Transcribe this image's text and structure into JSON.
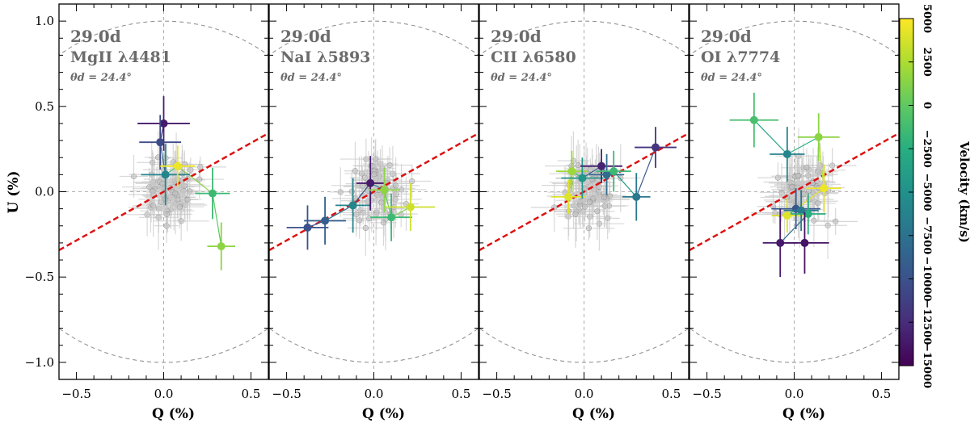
{
  "chart_data": {
    "type": "scatter",
    "figure_title": "",
    "x_range": [
      -0.6,
      0.6
    ],
    "y_range": [
      -1.1,
      1.1
    ],
    "xlabel": "Q (%)",
    "ylabel": "U (%)",
    "x_ticks": [
      -0.5,
      0.0,
      0.5
    ],
    "x_tick_labels": [
      "−0.5",
      "0.0",
      "0.5"
    ],
    "y_ticks": [
      -1.0,
      -0.5,
      0.0,
      0.5,
      1.0
    ],
    "y_tick_labels": [
      "−1.0",
      "−0.5",
      "0.0",
      "0.5",
      "1.0"
    ],
    "dominant_angle_deg": 24.4,
    "colorbar": {
      "label": "Velocity (km/s)",
      "range": [
        -15000,
        5000
      ],
      "ticks": [
        5000,
        2500,
        0,
        -2500,
        -5000,
        -7500,
        -10000,
        -12500,
        -15000
      ],
      "tick_labels": [
        "5000",
        "2500",
        "0",
        "−2500",
        "−5000",
        "−7500",
        "−10000",
        "−12500",
        "−15000"
      ],
      "colormap": "viridis"
    },
    "panels": [
      {
        "epoch": "29.0d",
        "line": "MgII λ4481",
        "angle_text": "θd = 24.4°",
        "points": [
          {
            "q": 0.0,
            "u": 0.4,
            "v": -13500,
            "eq": 0.15,
            "eu": 0.16
          },
          {
            "q": -0.02,
            "u": 0.29,
            "v": -10500,
            "eq": 0.12,
            "eu": 0.16
          },
          {
            "q": 0.01,
            "u": 0.1,
            "v": -6000,
            "eq": 0.14,
            "eu": 0.18
          },
          {
            "q": 0.08,
            "u": 0.15,
            "v": 4500,
            "eq": 0.1,
            "eu": 0.12
          },
          {
            "q": 0.28,
            "u": -0.01,
            "v": -1500,
            "eq": 0.1,
            "eu": 0.15
          },
          {
            "q": 0.33,
            "u": -0.32,
            "v": 1500,
            "eq": 0.08,
            "eu": 0.14
          }
        ]
      },
      {
        "epoch": "29.0d",
        "line": "NaI λ5893",
        "angle_text": "θd = 24.4°",
        "points": [
          {
            "q": -0.38,
            "u": -0.21,
            "v": -10000,
            "eq": 0.12,
            "eu": 0.13
          },
          {
            "q": -0.28,
            "u": -0.17,
            "v": -9000,
            "eq": 0.12,
            "eu": 0.14
          },
          {
            "q": -0.12,
            "u": -0.08,
            "v": -6000,
            "eq": 0.1,
            "eu": 0.16
          },
          {
            "q": -0.02,
            "u": 0.05,
            "v": -13500,
            "eq": 0.08,
            "eu": 0.16
          },
          {
            "q": 0.06,
            "u": 0.01,
            "v": 1500,
            "eq": 0.09,
            "eu": 0.13
          },
          {
            "q": 0.1,
            "u": -0.15,
            "v": -1500,
            "eq": 0.12,
            "eu": 0.14
          },
          {
            "q": 0.21,
            "u": -0.09,
            "v": 3500,
            "eq": 0.14,
            "eu": 0.14
          }
        ]
      },
      {
        "epoch": "29.0d",
        "line": "CII λ6580",
        "angle_text": "θd = 24.4°",
        "points": [
          {
            "q": -0.09,
            "u": -0.03,
            "v": 4000,
            "eq": 0.1,
            "eu": 0.1
          },
          {
            "q": -0.07,
            "u": 0.12,
            "v": 2000,
            "eq": 0.09,
            "eu": 0.12
          },
          {
            "q": -0.01,
            "u": 0.08,
            "v": -4500,
            "eq": 0.12,
            "eu": 0.12
          },
          {
            "q": 0.1,
            "u": 0.15,
            "v": -13000,
            "eq": 0.12,
            "eu": 0.1
          },
          {
            "q": 0.13,
            "u": 0.1,
            "v": -8000,
            "eq": 0.1,
            "eu": 0.12
          },
          {
            "q": 0.17,
            "u": 0.12,
            "v": -1500,
            "eq": 0.1,
            "eu": 0.12
          },
          {
            "q": 0.3,
            "u": -0.03,
            "v": -7000,
            "eq": 0.08,
            "eu": 0.14
          },
          {
            "q": 0.41,
            "u": 0.26,
            "v": -12000,
            "eq": 0.12,
            "eu": 0.12
          }
        ]
      },
      {
        "epoch": "29.0d",
        "line": "OI λ7774",
        "angle_text": "θd = 24.4°",
        "points": [
          {
            "q": -0.23,
            "u": 0.42,
            "v": -1000,
            "eq": 0.14,
            "eu": 0.16
          },
          {
            "q": -0.04,
            "u": 0.22,
            "v": -6000,
            "eq": 0.1,
            "eu": 0.16
          },
          {
            "q": 0.14,
            "u": 0.32,
            "v": 1500,
            "eq": 0.12,
            "eu": 0.14
          },
          {
            "q": 0.17,
            "u": 0.02,
            "v": 4500,
            "eq": 0.1,
            "eu": 0.14
          },
          {
            "q": -0.04,
            "u": -0.14,
            "v": 4000,
            "eq": 0.09,
            "eu": 0.1
          },
          {
            "q": 0.01,
            "u": -0.1,
            "v": -9500,
            "eq": 0.14,
            "eu": 0.12
          },
          {
            "q": 0.04,
            "u": -0.11,
            "v": -7000,
            "eq": 0.1,
            "eu": 0.12
          },
          {
            "q": 0.08,
            "u": -0.13,
            "v": -2500,
            "eq": 0.1,
            "eu": 0.12
          },
          {
            "q": -0.08,
            "u": -0.3,
            "v": -13500,
            "eq": 0.1,
            "eu": 0.2
          },
          {
            "q": 0.06,
            "u": -0.3,
            "v": -14000,
            "eq": 0.14,
            "eu": 0.18
          }
        ]
      }
    ]
  }
}
